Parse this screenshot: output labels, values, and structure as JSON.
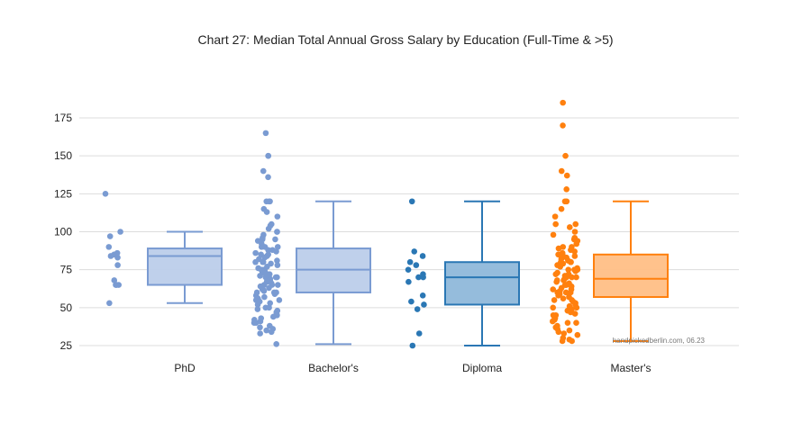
{
  "chart_data": {
    "type": "box",
    "title": "Chart 27: Median Total Annual Gross Salary by Education (Full-Time & >5)",
    "xlabel": "",
    "ylabel": "",
    "ylim": [
      22,
      180
    ],
    "yticks": [
      25,
      50,
      75,
      100,
      125,
      150,
      175
    ],
    "grid": true,
    "categories": [
      "PhD",
      "Bachelor's",
      "Diploma",
      "Master's"
    ],
    "colors": [
      "#7a9bd2",
      "#7a9bd2",
      "#2a77b4",
      "#ff800e"
    ],
    "box_fill_colors": [
      "#bccdea",
      "#bccdea",
      "#8fb8da",
      "#ffbf86"
    ],
    "boxes": [
      {
        "min": 53,
        "q1": 65,
        "median": 84,
        "q3": 89,
        "max": 100
      },
      {
        "min": 26,
        "q1": 60,
        "median": 75,
        "q3": 89,
        "max": 120
      },
      {
        "min": 25,
        "q1": 52,
        "median": 70,
        "q3": 80,
        "max": 120
      },
      {
        "min": 28,
        "q1": 57,
        "median": 69,
        "q3": 85,
        "max": 120
      }
    ],
    "points": [
      [
        125,
        100,
        97,
        90,
        86,
        85,
        84,
        83,
        78,
        68,
        65,
        65,
        65,
        53
      ],
      [
        165,
        150,
        150,
        140,
        136,
        120,
        120,
        120,
        115,
        113,
        110,
        105,
        104,
        102,
        100,
        100,
        98,
        96,
        95,
        95,
        94,
        92,
        90,
        90,
        90,
        88,
        88,
        87,
        86,
        85,
        85,
        84,
        83,
        82,
        81,
        80,
        80,
        80,
        79,
        78,
        77,
        76,
        75,
        75,
        75,
        74,
        73,
        72,
        72,
        71,
        70,
        70,
        70,
        69,
        68,
        68,
        67,
        66,
        65,
        65,
        65,
        64,
        63,
        62,
        62,
        61,
        60,
        60,
        60,
        59,
        58,
        57,
        56,
        55,
        55,
        54,
        53,
        52,
        50,
        50,
        49,
        48,
        47,
        46,
        45,
        45,
        44,
        43,
        42,
        41,
        40,
        40,
        38,
        37,
        36,
        35,
        34,
        33,
        26
      ],
      [
        120,
        87,
        84,
        80,
        78,
        75,
        72,
        70,
        70,
        67,
        58,
        54,
        52,
        49,
        33,
        25
      ],
      [
        185,
        170,
        150,
        140,
        137,
        128,
        120,
        120,
        115,
        110,
        105,
        105,
        103,
        100,
        98,
        96,
        95,
        94,
        92,
        90,
        90,
        89,
        88,
        87,
        86,
        85,
        85,
        84,
        83,
        82,
        81,
        80,
        80,
        80,
        79,
        78,
        77,
        76,
        75,
        75,
        75,
        74,
        73,
        72,
        72,
        71,
        70,
        70,
        70,
        69,
        68,
        68,
        67,
        66,
        65,
        65,
        65,
        64,
        63,
        62,
        62,
        61,
        60,
        60,
        60,
        59,
        58,
        57,
        56,
        55,
        55,
        54,
        53,
        52,
        51,
        50,
        50,
        49,
        48,
        47,
        46,
        45,
        45,
        44,
        43,
        42,
        41,
        40,
        40,
        38,
        37,
        36,
        35,
        34,
        33,
        32,
        30,
        29,
        28,
        28
      ]
    ],
    "watermark": "handpickedberlin.com, 06.23"
  }
}
